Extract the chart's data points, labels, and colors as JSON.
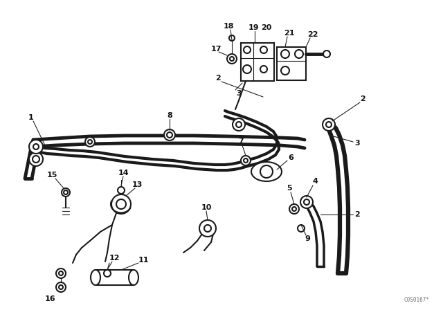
{
  "background_color": "#ffffff",
  "watermark": "C0S0167*",
  "line_color": "#1a1a1a",
  "lw_thin": 0.8,
  "lw_mid": 1.5,
  "lw_pipe": 3.5
}
